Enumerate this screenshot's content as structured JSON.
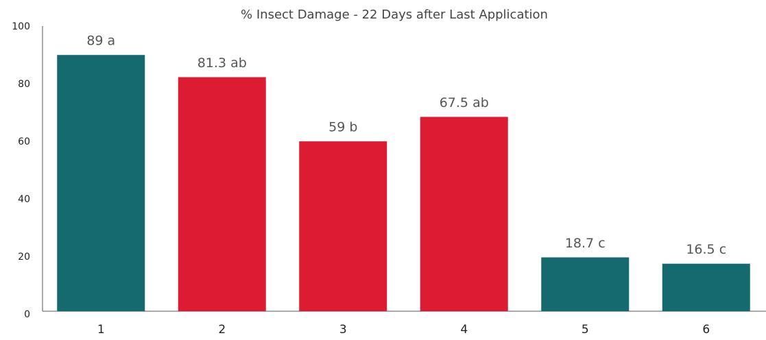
{
  "chart_data": {
    "type": "bar",
    "title": "% Insect Damage - 22 Days after Last Application",
    "categories": [
      "1",
      "2",
      "3",
      "4",
      "5",
      "6"
    ],
    "values": [
      89,
      81.3,
      59,
      67.5,
      18.7,
      16.5
    ],
    "value_labels": [
      "89 a",
      "81.3 ab",
      "59 b",
      "67.5 ab",
      "18.7 c",
      "16.5 c"
    ],
    "colors": [
      "#156a70",
      "#dc1c32",
      "#dc1c32",
      "#dc1c32",
      "#156a70",
      "#156a70"
    ],
    "ylim": [
      0,
      100
    ],
    "yticks": [
      0,
      20,
      40,
      60,
      80,
      100
    ],
    "grid": false
  }
}
